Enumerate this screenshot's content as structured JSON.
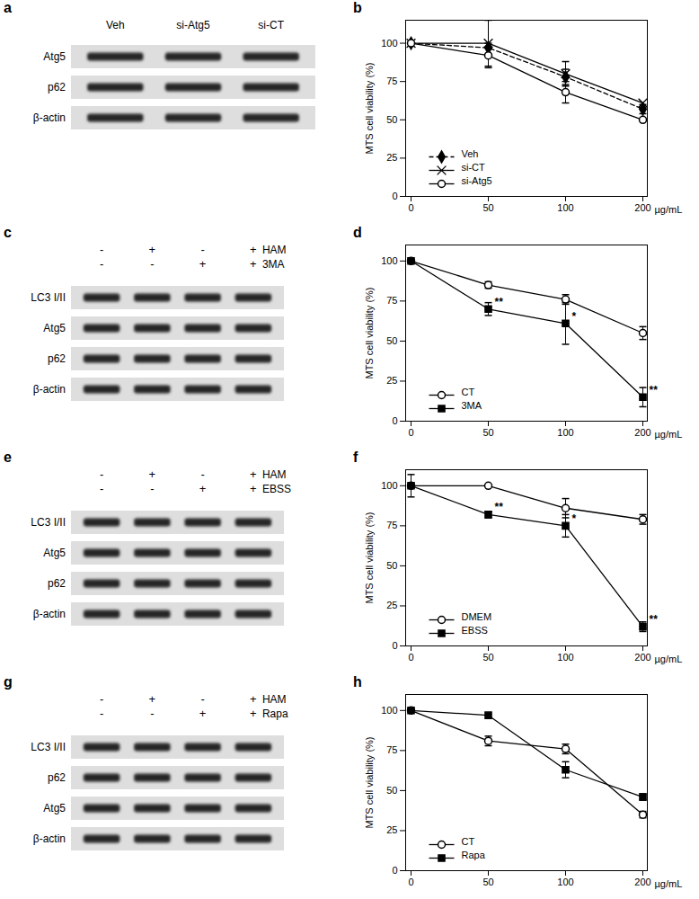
{
  "chart_data": [
    {
      "type": "line",
      "title": "b",
      "categories": [
        "0",
        "50",
        "100",
        "200"
      ],
      "xlabel": "µg/mL",
      "ylabel": "MTS cell viability (%)",
      "ylim": [
        0,
        115
      ],
      "yticks": [
        0,
        25,
        50,
        75,
        100
      ],
      "legend": "bottom-left",
      "series": [
        {
          "name": "Veh",
          "color": "#000000",
          "marker": "diamond",
          "line_style": "dashed",
          "values": [
            100,
            97,
            78,
            57
          ],
          "errors": [
            null,
            null,
            5,
            3
          ]
        },
        {
          "name": "si-CT",
          "color": "#000000",
          "marker": "times",
          "line_style": "solid",
          "values": [
            100,
            100,
            80,
            61
          ],
          "errors": [
            null,
            15,
            8,
            null
          ]
        },
        {
          "name": "si-Atg5",
          "color": "#000000",
          "marker": "circle",
          "line_style": "solid",
          "values": [
            100,
            92,
            68,
            50
          ],
          "errors": [
            null,
            8,
            7,
            null
          ]
        }
      ]
    },
    {
      "type": "line",
      "title": "d",
      "categories": [
        "0",
        "50",
        "100",
        "200"
      ],
      "xlabel": "µg/mL",
      "ylabel": "MTS cell viability (%)",
      "ylim": [
        0,
        110
      ],
      "yticks": [
        0,
        25,
        50,
        75,
        100
      ],
      "legend": "bottom-left",
      "series": [
        {
          "name": "CT",
          "color": "#000000",
          "marker": "circle",
          "line_style": "solid",
          "values": [
            100,
            85,
            76,
            55
          ],
          "errors": [
            null,
            2,
            3,
            4
          ]
        },
        {
          "name": "3MA",
          "color": "#000000",
          "marker": "square",
          "line_style": "solid",
          "values": [
            100,
            70,
            61,
            15
          ],
          "errors": [
            null,
            4,
            13,
            6
          ]
        }
      ],
      "annotations": [
        {
          "text": "**",
          "x": "50",
          "y": 70
        },
        {
          "text": "*",
          "x": "100",
          "y": 61
        },
        {
          "text": "**",
          "x": "200",
          "y": 15
        }
      ]
    },
    {
      "type": "line",
      "title": "f",
      "categories": [
        "0",
        "50",
        "100",
        "200"
      ],
      "xlabel": "µg/mL",
      "ylabel": "MTS cell viability (%)",
      "ylim": [
        0,
        110
      ],
      "yticks": [
        0,
        25,
        50,
        75,
        100
      ],
      "legend": "bottom-left",
      "series": [
        {
          "name": "DMEM",
          "color": "#000000",
          "marker": "circle",
          "line_style": "solid",
          "values": [
            100,
            100,
            86,
            79
          ],
          "errors": [
            null,
            null,
            6,
            3
          ]
        },
        {
          "name": "EBSS",
          "color": "#000000",
          "marker": "square",
          "line_style": "solid",
          "values": [
            100,
            82,
            75,
            12
          ],
          "errors": [
            7,
            2,
            7,
            3
          ]
        }
      ],
      "annotations": [
        {
          "text": "**",
          "x": "50",
          "y": 82
        },
        {
          "text": "*",
          "x": "100",
          "y": 75
        },
        {
          "text": "**",
          "x": "200",
          "y": 12
        }
      ]
    },
    {
      "type": "line",
      "title": "h",
      "categories": [
        "0",
        "50",
        "100",
        "200"
      ],
      "xlabel": "µg/mL",
      "ylabel": "MTS cell viability (%)",
      "ylim": [
        0,
        110
      ],
      "yticks": [
        0,
        25,
        50,
        75,
        100
      ],
      "legend": "bottom-left",
      "series": [
        {
          "name": "CT",
          "color": "#000000",
          "marker": "circle",
          "line_style": "solid",
          "values": [
            100,
            81,
            76,
            35
          ],
          "errors": [
            null,
            3,
            3,
            2
          ]
        },
        {
          "name": "Rapa",
          "color": "#000000",
          "marker": "square",
          "line_style": "solid",
          "values": [
            100,
            97,
            63,
            46
          ],
          "errors": [
            null,
            null,
            5,
            2
          ]
        }
      ]
    }
  ],
  "blots": [
    {
      "title": "a",
      "lanes": [
        "Veh",
        "si-Atg5",
        "si-CT"
      ],
      "rows": [
        "Atg5",
        "p62",
        "β-actin"
      ]
    },
    {
      "title": "c",
      "conditions": [
        {
          "label": "HAM",
          "signs": [
            "-",
            "+",
            "-",
            "+"
          ]
        },
        {
          "label": "3MA",
          "signs": [
            "-",
            "-",
            "+",
            "+"
          ]
        }
      ],
      "rows": [
        "LC3 I/II",
        "Atg5",
        "p62",
        "β-actin"
      ]
    },
    {
      "title": "e",
      "conditions": [
        {
          "label": "HAM",
          "signs": [
            "-",
            "+",
            "-",
            "+"
          ]
        },
        {
          "label": "EBSS",
          "signs": [
            "-",
            "-",
            "+",
            "+"
          ]
        }
      ],
      "rows": [
        "LC3 I/II",
        "Atg5",
        "p62",
        "β-actin"
      ]
    },
    {
      "title": "g",
      "conditions": [
        {
          "label": "HAM",
          "signs": [
            "-",
            "+",
            "-",
            "+"
          ]
        },
        {
          "label": "Rapa",
          "signs": [
            "-",
            "-",
            "+",
            "+"
          ]
        }
      ],
      "rows": [
        "LC3 I/II",
        "p62",
        "Atg5",
        "β-actin"
      ]
    }
  ]
}
